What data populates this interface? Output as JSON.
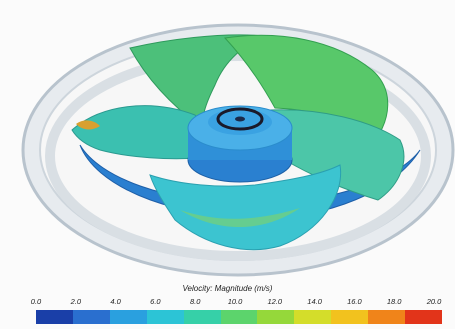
{
  "colorbar": {
    "title": "Velocity: Magnitude (m/s)",
    "ticks": [
      "0.0",
      "2.0",
      "4.0",
      "6.0",
      "8.0",
      "10.0",
      "12.0",
      "14.0",
      "16.0",
      "18.0",
      "20.0"
    ],
    "colors": [
      "#1a3fa8",
      "#2a6fcf",
      "#2aa0df",
      "#2cc4d6",
      "#36d0a8",
      "#5cd46c",
      "#95d83a",
      "#d4dd2a",
      "#f2c21e",
      "#f0841a",
      "#e2341a"
    ]
  }
}
